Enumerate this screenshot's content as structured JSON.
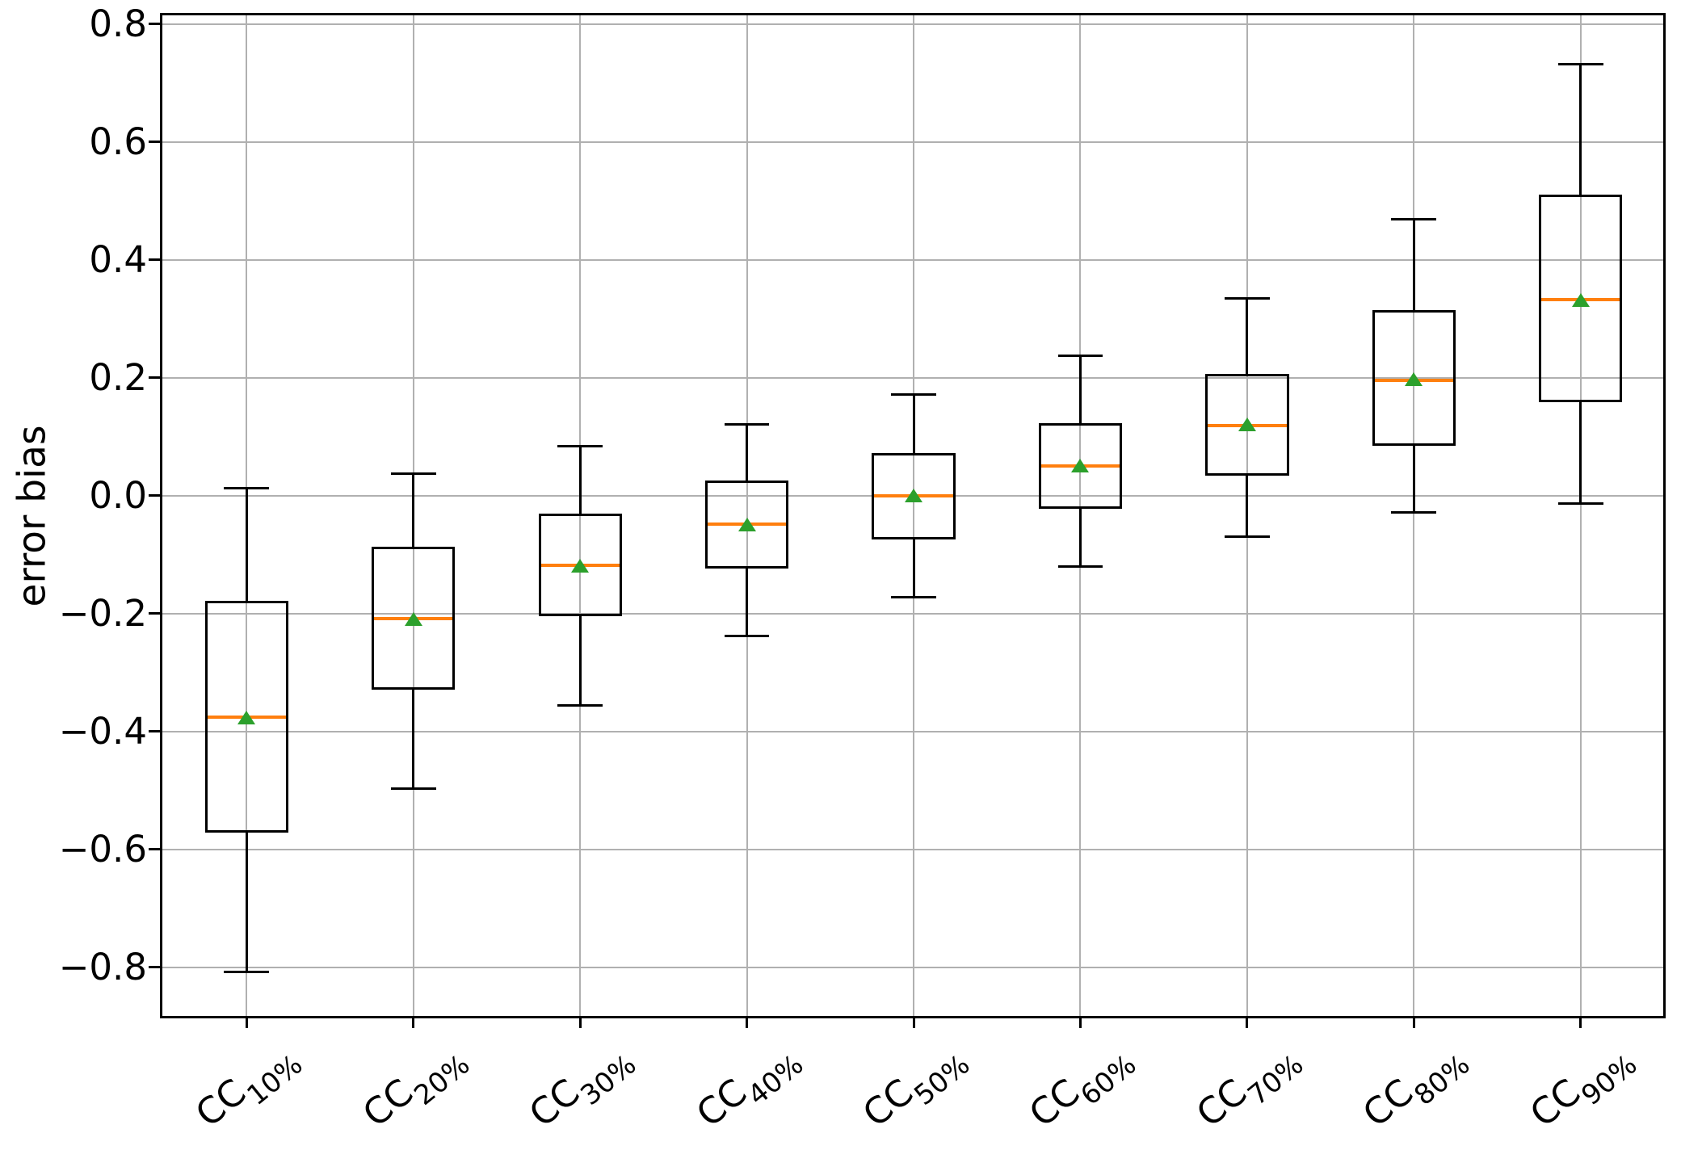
{
  "chart_data": {
    "type": "box",
    "title": "",
    "xlabel": "",
    "ylabel": "error bias",
    "grid": true,
    "legend": null,
    "ylim": [
      -0.884,
      0.816
    ],
    "xlim": [
      0.49,
      9.5
    ],
    "yticks": [
      {
        "value": 0.8,
        "label": "0.8"
      },
      {
        "value": 0.6,
        "label": "0.6"
      },
      {
        "value": 0.4,
        "label": "0.4"
      },
      {
        "value": 0.2,
        "label": "0.2"
      },
      {
        "value": 0.0,
        "label": "0.0"
      },
      {
        "value": -0.2,
        "label": "−0.2"
      },
      {
        "value": -0.4,
        "label": "−0.4"
      },
      {
        "value": -0.6,
        "label": "−0.6"
      },
      {
        "value": -0.8,
        "label": "−0.8"
      }
    ],
    "colors": {
      "median": "#ff7f0e",
      "mean_marker": "#2ca02c",
      "box_edge": "#000000",
      "grid": "#b0b0b0",
      "background": "#ffffff",
      "text": "#000000"
    },
    "categories": [
      "CC10%",
      "CC20%",
      "CC30%",
      "CC40%",
      "CC50%",
      "CC60%",
      "CC70%",
      "CC80%",
      "CC90%"
    ],
    "boxes": [
      {
        "label_base": "CC",
        "label_sub": "10%",
        "whislo": -0.808,
        "q1": -0.572,
        "med": -0.376,
        "mean": -0.377,
        "q3": -0.179,
        "whishi": 0.012
      },
      {
        "label_base": "CC",
        "label_sub": "20%",
        "whislo": -0.497,
        "q1": -0.329,
        "med": -0.208,
        "mean": -0.21,
        "q3": -0.087,
        "whishi": 0.037
      },
      {
        "label_base": "CC",
        "label_sub": "30%",
        "whislo": -0.356,
        "q1": -0.205,
        "med": -0.118,
        "mean": -0.119,
        "q3": -0.03,
        "whishi": 0.084
      },
      {
        "label_base": "CC",
        "label_sub": "40%",
        "whislo": -0.238,
        "q1": -0.124,
        "med": -0.049,
        "mean": -0.05,
        "q3": 0.025,
        "whishi": 0.121
      },
      {
        "label_base": "CC",
        "label_sub": "50%",
        "whislo": -0.172,
        "q1": -0.074,
        "med": 0.0,
        "mean": 0.0,
        "q3": 0.072,
        "whishi": 0.172
      },
      {
        "label_base": "CC",
        "label_sub": "60%",
        "whislo": -0.12,
        "q1": -0.022,
        "med": 0.05,
        "mean": 0.05,
        "q3": 0.123,
        "whishi": 0.237
      },
      {
        "label_base": "CC",
        "label_sub": "70%",
        "whislo": -0.07,
        "q1": 0.034,
        "med": 0.119,
        "mean": 0.12,
        "q3": 0.207,
        "whishi": 0.335
      },
      {
        "label_base": "CC",
        "label_sub": "80%",
        "whislo": -0.028,
        "q1": 0.084,
        "med": 0.196,
        "mean": 0.197,
        "q3": 0.314,
        "whishi": 0.469
      },
      {
        "label_base": "CC",
        "label_sub": "90%",
        "whislo": -0.014,
        "q1": 0.158,
        "med": 0.333,
        "mean": 0.331,
        "q3": 0.51,
        "whishi": 0.732
      }
    ]
  }
}
